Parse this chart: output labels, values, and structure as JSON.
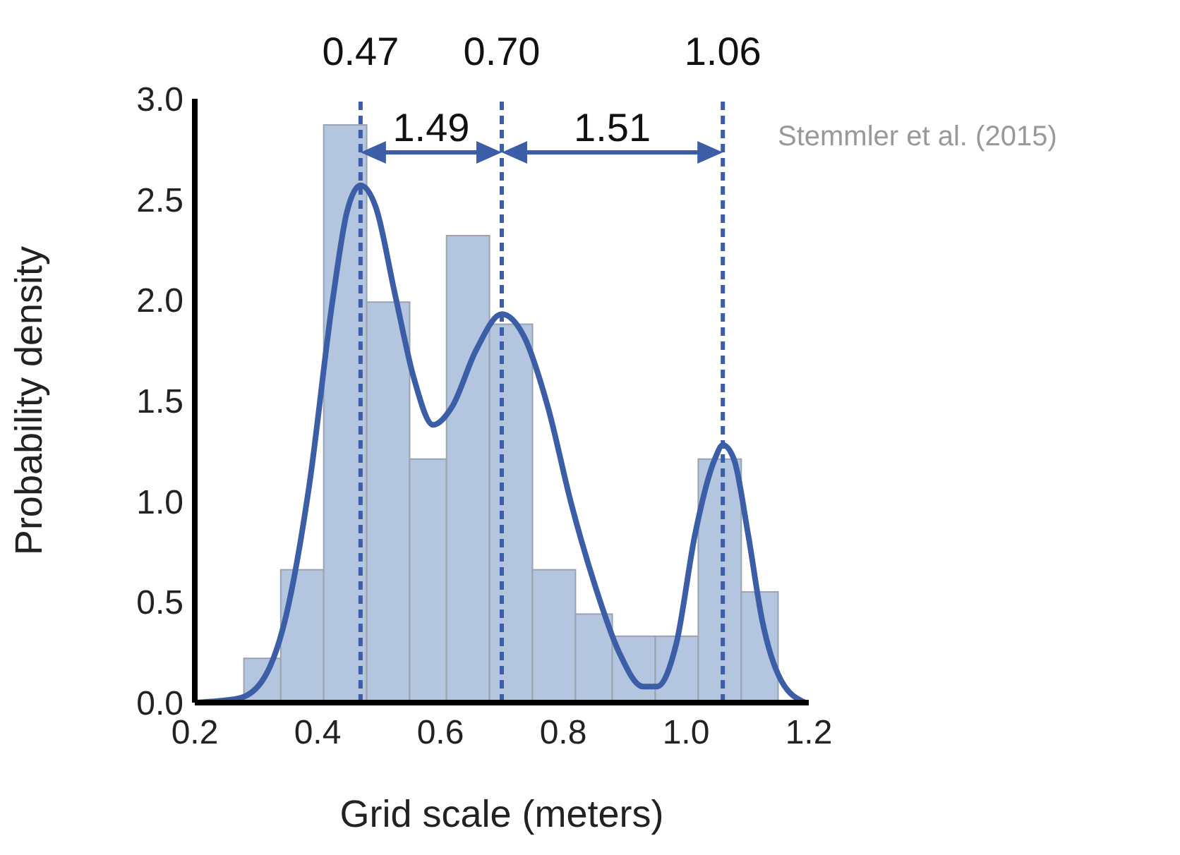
{
  "chart_data": {
    "type": "histogram",
    "xlabel": "Grid scale (meters)",
    "ylabel": "Probability density",
    "bins": [
      0.28,
      0.34,
      0.41,
      0.48,
      0.55,
      0.61,
      0.68,
      0.75,
      0.82,
      0.88,
      0.95,
      1.02,
      1.09,
      1.15
    ],
    "values": [
      0.22,
      0.66,
      2.87,
      1.99,
      1.21,
      2.32,
      1.88,
      0.66,
      0.44,
      0.33,
      0.33,
      1.21,
      0.55
    ],
    "color": "#b4c5e0",
    "series": [
      {
        "type": "line",
        "color": "#3c5ea6",
        "x": [
          0.2,
          0.27,
          0.308,
          0.347,
          0.386,
          0.425,
          0.448,
          0.47,
          0.495,
          0.526,
          0.557,
          0.588,
          0.619,
          0.658,
          0.7,
          0.736,
          0.775,
          0.813,
          0.852,
          0.891,
          0.93,
          0.953,
          0.984,
          1.015,
          1.047,
          1.06,
          1.078,
          1.101,
          1.124,
          1.155,
          1.194
        ],
        "values": [
          0,
          0.02,
          0.1,
          0.41,
          1.07,
          2.01,
          2.44,
          2.57,
          2.46,
          2.03,
          1.61,
          1.38,
          1.47,
          1.75,
          1.93,
          1.82,
          1.47,
          0.99,
          0.58,
          0.25,
          0.08,
          0.08,
          0.29,
          0.84,
          1.21,
          1.28,
          1.21,
          0.84,
          0.41,
          0.11,
          0
        ]
      }
    ],
    "xlim": [
      0.2,
      1.2
    ],
    "xticks": [
      0.2,
      0.4,
      0.6,
      0.8,
      {
        "value": 1,
        "label": "1.0"
      },
      1.2
    ],
    "ylim": [
      0,
      3
    ],
    "yticks": [
      {
        "value": 0,
        "label": "0.0"
      },
      0.5,
      {
        "value": 1,
        "label": "1.0"
      },
      1.5,
      {
        "value": 2,
        "label": "2.0"
      },
      2.5,
      {
        "value": 3,
        "label": "3.0"
      }
    ],
    "ref_lines": [
      {
        "axis": "x",
        "value": 0.47,
        "label": "0.47",
        "color": "#3c5ea6",
        "line_style": "dashed"
      },
      {
        "axis": "x",
        "value": 0.7,
        "label": "0.70",
        "color": "#3c5ea6",
        "line_style": "dashed"
      },
      {
        "axis": "x",
        "value": 1.06,
        "label": "1.06",
        "color": "#3c5ea6",
        "line_style": "dashed"
      }
    ],
    "annotations": [
      "1.49",
      "1.51",
      "Stemmler et al. (2015)"
    ]
  }
}
